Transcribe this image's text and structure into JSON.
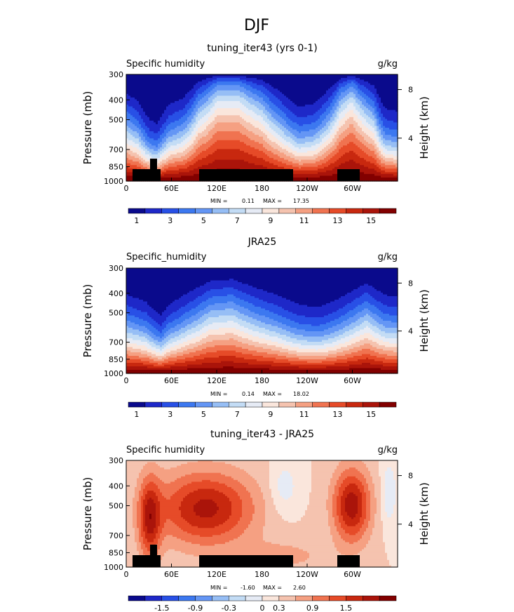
{
  "page_title": "DJF",
  "chart_data": [
    {
      "type": "heatmap",
      "title": "tuning_iter43 (yrs 0-1)",
      "left_label": "Specific humidity",
      "units": "g/kg",
      "ylabel": "Pressure (mb)",
      "ylabel_right": "Height (km)",
      "yticks": [
        "300",
        "400",
        "500",
        "700",
        "850",
        "1000"
      ],
      "yticks_right": [
        "8",
        "4"
      ],
      "xticks": [
        "0",
        "60E",
        "120E",
        "180",
        "120W",
        "60W"
      ],
      "stats": {
        "min_label": "MIN =",
        "min": "0.11",
        "max_label": "MAX =",
        "max": "17.35"
      },
      "colorbar_labels": [
        "1",
        "3",
        "5",
        "7",
        "9",
        "11",
        "13",
        "15"
      ],
      "colors": [
        "#0a0a8c",
        "#1e28c8",
        "#2850e6",
        "#3c78f0",
        "#6496f5",
        "#96bef5",
        "#c3dcf5",
        "#e6ebf5",
        "#fae6dc",
        "#f5c3af",
        "#f5a082",
        "#f07350",
        "#e64b28",
        "#c8280f",
        "#aa140a",
        "#820000"
      ],
      "profile": [
        [
          0,
          1.6
        ],
        [
          15,
          2.0
        ],
        [
          30,
          3.2
        ],
        [
          40,
          3.6
        ],
        [
          45,
          3.0
        ],
        [
          55,
          2.2
        ],
        [
          75,
          1.8
        ],
        [
          95,
          1.0
        ],
        [
          120,
          0.6
        ],
        [
          150,
          0.6
        ],
        [
          180,
          0.9
        ],
        [
          205,
          1.5
        ],
        [
          230,
          2.3
        ],
        [
          250,
          2.1
        ],
        [
          285,
          0.8
        ],
        [
          300,
          0.6
        ],
        [
          330,
          1.2
        ],
        [
          345,
          2.4
        ],
        [
          360,
          2.6
        ]
      ],
      "topography": true
    },
    {
      "type": "heatmap",
      "title": "JRA25",
      "left_label": "Specific_humidity",
      "units": "g/kg",
      "ylabel": "Pressure (mb)",
      "ylabel_right": "Height (km)",
      "yticks": [
        "300",
        "400",
        "500",
        "700",
        "850",
        "1000"
      ],
      "yticks_right": [
        "8",
        "4"
      ],
      "xticks": [
        "0",
        "60E",
        "120E",
        "180",
        "120W",
        "60W"
      ],
      "stats": {
        "min_label": "MIN =",
        "min": "0.14",
        "max_label": "MAX =",
        "max": "18.02"
      },
      "colorbar_labels": [
        "1",
        "3",
        "5",
        "7",
        "9",
        "11",
        "13",
        "15"
      ],
      "colors": [
        "#0a0a8c",
        "#1e28c8",
        "#2850e6",
        "#3c78f0",
        "#6496f5",
        "#96bef5",
        "#c3dcf5",
        "#e6ebf5",
        "#fae6dc",
        "#f5c3af",
        "#f5a082",
        "#f07350",
        "#e64b28",
        "#c8280f",
        "#aa140a",
        "#820000"
      ],
      "profile": [
        [
          0,
          2.0
        ],
        [
          25,
          2.4
        ],
        [
          40,
          3.2
        ],
        [
          45,
          3.4
        ],
        [
          55,
          2.6
        ],
        [
          80,
          1.9
        ],
        [
          110,
          1.3
        ],
        [
          140,
          1.2
        ],
        [
          170,
          1.6
        ],
        [
          200,
          2.0
        ],
        [
          230,
          2.6
        ],
        [
          255,
          2.8
        ],
        [
          275,
          2.4
        ],
        [
          300,
          1.8
        ],
        [
          320,
          1.4
        ],
        [
          345,
          2.0
        ],
        [
          360,
          2.1
        ]
      ],
      "topography": false
    },
    {
      "type": "heatmap",
      "title": "tuning_iter43 - JRA25",
      "left_label": "Specific humidity",
      "units": "g/kg",
      "ylabel": "Pressure (mb)",
      "ylabel_right": "Height (km)",
      "yticks": [
        "300",
        "400",
        "500",
        "700",
        "850",
        "1000"
      ],
      "yticks_right": [
        "8",
        "4"
      ],
      "xticks": [
        "0",
        "60E",
        "120E",
        "180",
        "120W",
        "60W"
      ],
      "stats": {
        "min_label": "MIN =",
        "min": "-1.60",
        "max_label": "MAX =",
        "max": "2.60"
      },
      "colorbar_labels": [
        "-1.5",
        "-0.9",
        "-0.3",
        "0",
        "0.3",
        "0.9",
        "1.5"
      ],
      "colors": [
        "#0a0a8c",
        "#1e28c8",
        "#2850e6",
        "#3c78f0",
        "#6496f5",
        "#96bef5",
        "#c3dcf5",
        "#e6ebf5",
        "#fae6dc",
        "#f5c3af",
        "#f5a082",
        "#f07350",
        "#e64b28",
        "#c8280f",
        "#aa140a",
        "#820000"
      ],
      "anomaly_blobs": [
        {
          "lon": 105,
          "lev": 0.45,
          "rlon": 65,
          "rlev": 0.35,
          "value": 1.6
        },
        {
          "lon": 300,
          "lev": 0.42,
          "rlon": 25,
          "rlev": 0.35,
          "value": 1.7
        },
        {
          "lon": 30,
          "lev": 0.55,
          "rlon": 15,
          "rlev": 0.4,
          "value": 1.4
        },
        {
          "lon": 210,
          "lev": 0.25,
          "rlon": 20,
          "rlev": 0.25,
          "value": -0.5
        },
        {
          "lon": 350,
          "lev": 0.3,
          "rlon": 10,
          "rlev": 0.3,
          "value": -0.6
        },
        {
          "lon": 210,
          "lev": 0.9,
          "rlon": 60,
          "rlev": 0.15,
          "value": 0.4
        }
      ],
      "topography": true
    }
  ]
}
